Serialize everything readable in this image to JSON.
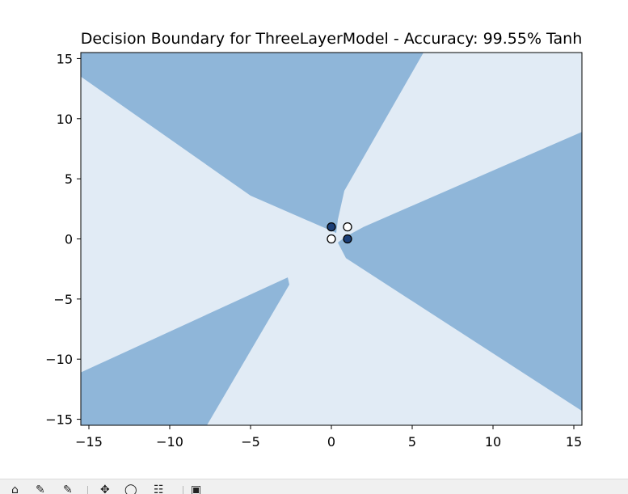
{
  "chart_data": {
    "type": "contour",
    "title": "Decision Boundary for ThreeLayerModel - Accuracy: 99.55% Tanh",
    "xlabel": "",
    "ylabel": "",
    "xlim": [
      -15.5,
      15.5
    ],
    "ylim": [
      -15.5,
      15.5
    ],
    "xticks": [
      "−15",
      "−10",
      "−5",
      "0",
      "5",
      "10",
      "15"
    ],
    "xtick_values": [
      -15,
      -10,
      -5,
      0,
      5,
      10,
      15
    ],
    "yticks": [
      "−15",
      "−10",
      "−5",
      "0",
      "5",
      "10",
      "15"
    ],
    "ytick_values": [
      -15,
      -10,
      -5,
      0,
      5,
      10,
      15
    ],
    "grid": false,
    "colors": {
      "class_0_region": "#e1ebf5",
      "class_1_region": "#8fb6d9",
      "class_0_point": "#ffffff",
      "class_1_point": "#1c3f78"
    },
    "regions": [
      {
        "class": 1,
        "polygon": [
          [
            -15.5,
            15.5
          ],
          [
            5.7,
            15.5
          ],
          [
            0.8,
            4.0
          ],
          [
            0.4,
            1.6
          ],
          [
            0.3,
            0.5
          ],
          [
            -5.0,
            3.6
          ],
          [
            -15.5,
            13.5
          ]
        ]
      },
      {
        "class": 1,
        "polygon": [
          [
            15.5,
            8.9
          ],
          [
            2.0,
            1.0
          ],
          [
            0.9,
            0.2
          ],
          [
            0.4,
            -0.3
          ],
          [
            0.9,
            -1.6
          ],
          [
            15.5,
            -14.3
          ]
        ]
      },
      {
        "class": 1,
        "polygon": [
          [
            -15.5,
            -11.1
          ],
          [
            -2.7,
            -3.2
          ],
          [
            -2.6,
            -3.8
          ],
          [
            -7.7,
            -15.5
          ],
          [
            -15.5,
            -15.5
          ]
        ]
      }
    ],
    "points": [
      {
        "x": 0,
        "y": 1,
        "class": 1
      },
      {
        "x": 1,
        "y": 1,
        "class": 0
      },
      {
        "x": 0,
        "y": 0,
        "class": 0
      },
      {
        "x": 1,
        "y": 0,
        "class": 1
      }
    ]
  },
  "toolbar": {
    "icons": [
      "home-icon",
      "back-icon",
      "forward-icon",
      "pan-icon",
      "zoom-icon",
      "configure-icon",
      "save-icon"
    ]
  }
}
